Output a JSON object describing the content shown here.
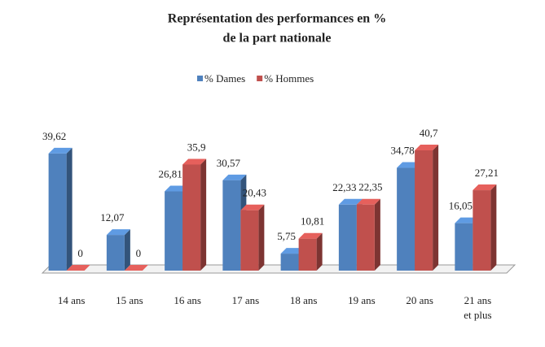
{
  "chart_data": {
    "type": "bar3d",
    "title": [
      "Représentation des performances en %",
      "de la part nationale"
    ],
    "categories": [
      "14 ans",
      "15 ans",
      "16 ans",
      "17 ans",
      "18 ans",
      "19 ans",
      "20 ans",
      "21 ans et plus"
    ],
    "series": [
      {
        "name": "% Dames",
        "color": "#4f81bd",
        "values": [
          39.62,
          12.07,
          26.81,
          30.57,
          5.75,
          22.33,
          34.78,
          16.05
        ],
        "value_labels": [
          "39,62",
          "12,07",
          "26,81",
          "30,57",
          "5,75",
          "22,33",
          "34,78",
          "16,05"
        ]
      },
      {
        "name": "% Hommes",
        "color": "#c0504d",
        "values": [
          0,
          0,
          35.9,
          20.43,
          10.81,
          22.35,
          40.7,
          27.21
        ],
        "value_labels": [
          "0",
          "0",
          "35,9",
          "20,43",
          "10,81",
          "22,35",
          "40,7",
          "27,21"
        ]
      }
    ],
    "legend": "top"
  }
}
